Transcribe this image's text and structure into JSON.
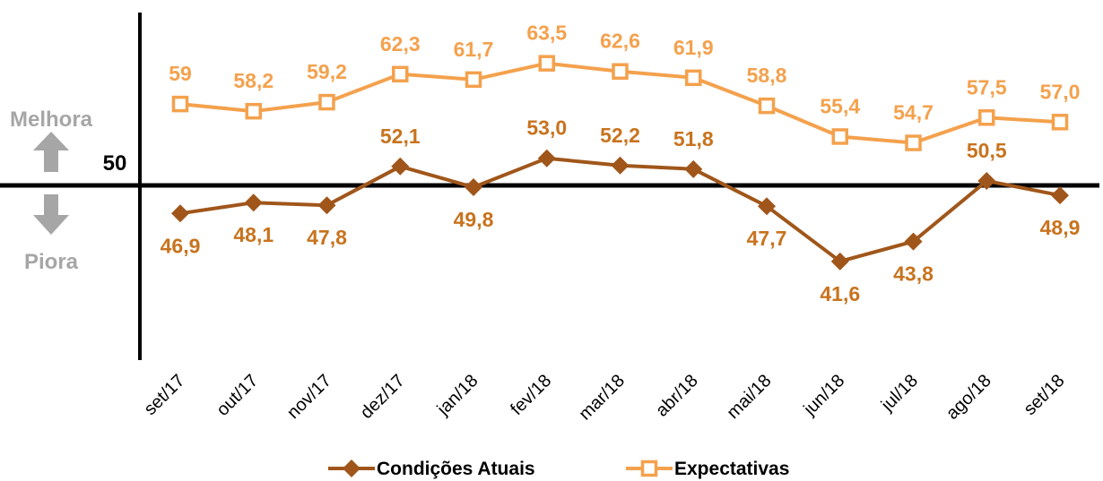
{
  "chart_data": {
    "type": "line",
    "categories": [
      "set/17",
      "out/17",
      "nov/17",
      "dez/17",
      "jan/18",
      "fev/18",
      "mar/18",
      "abr/18",
      "mai/18",
      "jun/18",
      "jul/18",
      "ago/18",
      "set/18"
    ],
    "series": [
      {
        "name": "Condições Atuais",
        "values": [
          46.9,
          48.1,
          47.8,
          52.1,
          49.8,
          53.0,
          52.2,
          51.8,
          47.7,
          41.6,
          43.8,
          50.5,
          48.9
        ],
        "labels": [
          "46,9",
          "48,1",
          "47,8",
          "52,1",
          "49,8",
          "53,0",
          "52,2",
          "51,8",
          "47,7",
          "41,6",
          "43,8",
          "50,5",
          "48,9"
        ],
        "label_positions": [
          "below",
          "below",
          "below",
          "above",
          "below",
          "above",
          "above",
          "above",
          "below",
          "below",
          "below",
          "above",
          "below"
        ],
        "color": "#a0561a",
        "label_color": "#c8731e",
        "marker": "diamond"
      },
      {
        "name": "Expectativas",
        "values": [
          59,
          58.2,
          59.2,
          62.3,
          61.7,
          63.5,
          62.6,
          61.9,
          58.8,
          55.4,
          54.7,
          57.5,
          57.0
        ],
        "labels": [
          "59",
          "58,2",
          "59,2",
          "62,3",
          "61,7",
          "63,5",
          "62,6",
          "61,9",
          "58,8",
          "55,4",
          "54,7",
          "57,5",
          "57,0"
        ],
        "label_positions": [
          "above",
          "above",
          "above",
          "above",
          "above",
          "above",
          "above",
          "above",
          "above",
          "above",
          "above",
          "above",
          "above"
        ],
        "color": "#f4a14d",
        "label_color": "#f4a14d",
        "marker": "square"
      }
    ],
    "ylim": [
      32,
      70
    ],
    "reference_line": {
      "value": 50,
      "label": "50"
    },
    "above_label": "Melhora",
    "below_label": "Piora",
    "legend_position": "bottom-center",
    "grid": false,
    "title": "",
    "xlabel": "",
    "ylabel": ""
  }
}
